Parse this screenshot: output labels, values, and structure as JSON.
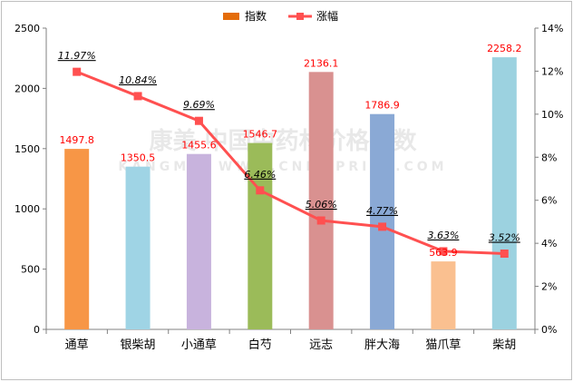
{
  "chart_data": {
    "type": "bar",
    "categories": [
      "通草",
      "银柴胡",
      "小通草",
      "白芍",
      "远志",
      "胖大海",
      "猫爪草",
      "柴胡"
    ],
    "series": [
      {
        "name": "指数",
        "type": "bar",
        "axis": "left",
        "values": [
          1497.8,
          1350.5,
          1455.6,
          1546.7,
          2136.1,
          1786.9,
          563.9,
          2258.2
        ],
        "value_labels": [
          "1497.8",
          "1350.5",
          "1455.6",
          "1546.7",
          "2136.1",
          "1786.9",
          "563.9",
          "2258.2"
        ],
        "colors": [
          "#f79646",
          "#9fd4e5",
          "#c8b3dd",
          "#9bbb59",
          "#d99190",
          "#8aa9d5",
          "#fac090",
          "#9cd2e0"
        ]
      },
      {
        "name": "涨幅",
        "type": "line",
        "axis": "right",
        "values": [
          11.97,
          10.84,
          9.69,
          6.46,
          5.06,
          4.77,
          3.63,
          3.52
        ],
        "value_labels": [
          "11.97%",
          "10.84%",
          "9.69%",
          "6.46%",
          "5.06%",
          "4.77%",
          "3.63%",
          "3.52%"
        ],
        "color": "#ff5050"
      }
    ],
    "y_left": {
      "range": [
        0,
        2500
      ],
      "ticks": [
        "0",
        "500",
        "1000",
        "1500",
        "2000",
        "2500"
      ]
    },
    "y_right": {
      "range": [
        0,
        14
      ],
      "ticks": [
        "0%",
        "2%",
        "4%",
        "6%",
        "8%",
        "10%",
        "12%",
        "14%"
      ]
    },
    "legend": {
      "placement": "top-center",
      "items": [
        "指数",
        "涨幅"
      ]
    },
    "grid": false
  },
  "watermark": {
    "text": "康美 中国中药材价格指数",
    "subtext": "KANGMEI WWW.CNKMPRICE.COM"
  }
}
